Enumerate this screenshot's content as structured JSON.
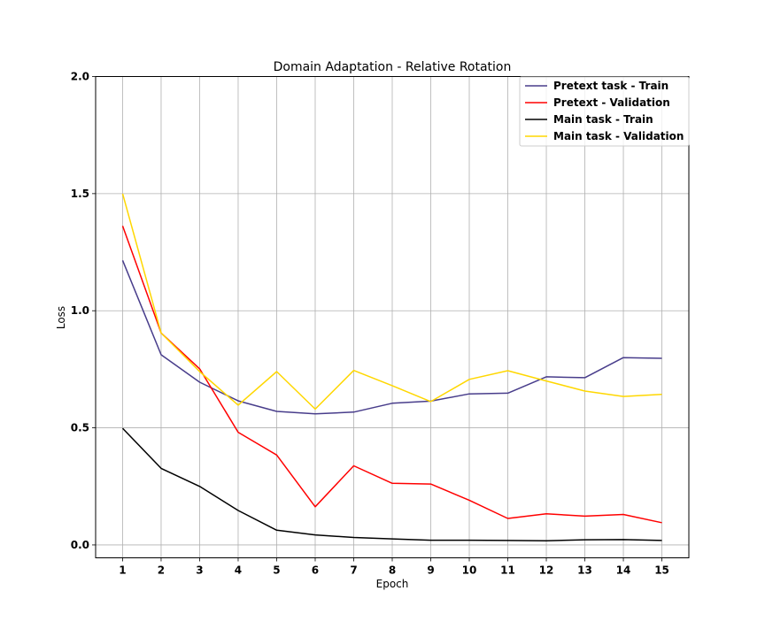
{
  "chart_data": {
    "type": "line",
    "title": "Domain Adaptation - Relative Rotation",
    "xlabel": "Epoch",
    "ylabel": "Loss",
    "x": [
      1,
      2,
      3,
      4,
      5,
      6,
      7,
      8,
      9,
      10,
      11,
      12,
      13,
      14,
      15
    ],
    "xlim": [
      0.3,
      15.7
    ],
    "ylim": [
      -0.055,
      2.0
    ],
    "yticks": [
      0.0,
      0.5,
      1.0,
      1.5,
      2.0
    ],
    "ytick_labels": [
      "0.0",
      "0.5",
      "1.0",
      "1.5",
      "2.0"
    ],
    "xtick_labels": [
      "1",
      "2",
      "3",
      "4",
      "5",
      "6",
      "7",
      "8",
      "9",
      "10",
      "11",
      "12",
      "13",
      "14",
      "15"
    ],
    "grid": true,
    "legend_position": "top-right",
    "series": [
      {
        "name": "Pretext task - Train",
        "color": "#483d8b",
        "values": [
          1.215,
          0.812,
          0.695,
          0.615,
          0.57,
          0.56,
          0.567,
          0.605,
          0.614,
          0.645,
          0.648,
          0.718,
          0.714,
          0.8,
          0.797
        ]
      },
      {
        "name": "Pretext - Validation",
        "color": "#ff0000",
        "values": [
          1.362,
          0.905,
          0.752,
          0.481,
          0.384,
          0.163,
          0.338,
          0.263,
          0.26,
          0.191,
          0.113,
          0.133,
          0.123,
          0.13,
          0.095
        ]
      },
      {
        "name": "Main task - Train",
        "color": "#000000",
        "values": [
          0.498,
          0.327,
          0.25,
          0.147,
          0.063,
          0.043,
          0.032,
          0.026,
          0.02,
          0.02,
          0.019,
          0.018,
          0.022,
          0.023,
          0.019
        ]
      },
      {
        "name": "Main task - Validation",
        "color": "#ffd700",
        "values": [
          1.5,
          0.905,
          0.74,
          0.597,
          0.74,
          0.58,
          0.745,
          0.68,
          0.612,
          0.707,
          0.744,
          0.7,
          0.657,
          0.634,
          0.643
        ]
      }
    ]
  }
}
